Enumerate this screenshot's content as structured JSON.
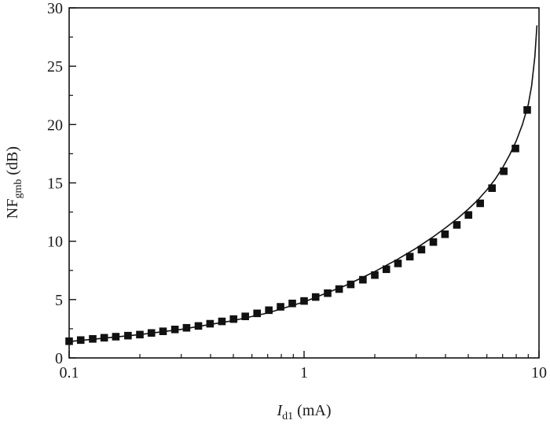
{
  "chart_data": {
    "type": "line",
    "xlabel": {
      "main": "I",
      "sub": "d1",
      "unit": " (mA)"
    },
    "ylabel": {
      "main": "NF",
      "sub": "gmb",
      "unit": " (dB)"
    },
    "xscale": "log",
    "xlim": [
      0.1,
      10
    ],
    "ylim": [
      0,
      30
    ],
    "x_ticks": [
      0.1,
      1,
      10
    ],
    "x_tick_labels": [
      "0.1",
      "1",
      "10"
    ],
    "y_ticks": [
      0,
      5,
      10,
      15,
      20,
      25,
      30
    ],
    "y_tick_labels": [
      "0",
      "5",
      "10",
      "15",
      "20",
      "25",
      "30"
    ],
    "grid": false,
    "series": [
      {
        "style": "line",
        "color": "#111111",
        "x": [
          0.1,
          0.15,
          0.2,
          0.3,
          0.5,
          0.7,
          1,
          1.5,
          2,
          2.5,
          3,
          3.5,
          4,
          4.5,
          5,
          5.5,
          6,
          6.5,
          7,
          7.5,
          8,
          8.5,
          9,
          9.3,
          9.6,
          9.8
        ],
        "y": [
          1.4,
          1.75,
          2.0,
          2.45,
          3.2,
          3.85,
          4.8,
          6.2,
          7.4,
          8.45,
          9.4,
          10.3,
          11.15,
          11.95,
          12.75,
          13.55,
          14.4,
          15.3,
          16.3,
          17.4,
          18.6,
          20.0,
          21.7,
          23.3,
          25.8,
          28.5
        ]
      },
      {
        "style": "markers",
        "marker": "square",
        "color": "#111111",
        "x": [
          0.1,
          0.112,
          0.126,
          0.141,
          0.158,
          0.178,
          0.2,
          0.224,
          0.251,
          0.282,
          0.316,
          0.355,
          0.398,
          0.447,
          0.501,
          0.562,
          0.631,
          0.708,
          0.794,
          0.891,
          1.0,
          1.12,
          1.26,
          1.41,
          1.58,
          1.78,
          2.0,
          2.24,
          2.51,
          2.82,
          3.16,
          3.55,
          3.98,
          4.47,
          5.01,
          5.62,
          6.31,
          7.08,
          7.94,
          8.91
        ],
        "y": [
          1.43,
          1.53,
          1.63,
          1.73,
          1.82,
          1.91,
          2.0,
          2.14,
          2.28,
          2.44,
          2.58,
          2.74,
          2.93,
          3.13,
          3.33,
          3.56,
          3.82,
          4.09,
          4.38,
          4.67,
          4.88,
          5.22,
          5.55,
          5.9,
          6.3,
          6.7,
          7.1,
          7.6,
          8.1,
          8.68,
          9.28,
          9.93,
          10.6,
          11.4,
          12.25,
          13.25,
          14.55,
          16.0,
          17.95,
          21.25
        ]
      }
    ]
  }
}
